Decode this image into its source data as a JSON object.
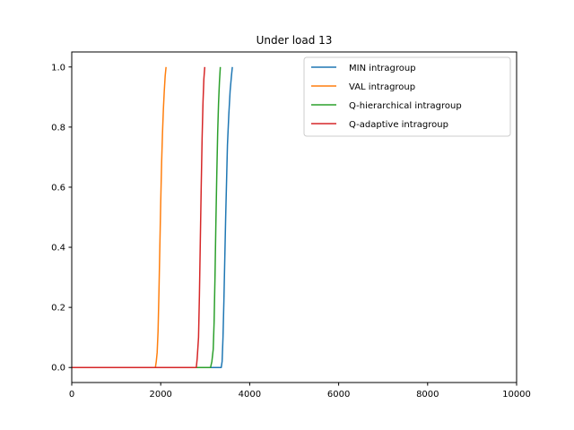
{
  "chart_data": {
    "type": "line",
    "title": "Under load 13",
    "xlabel": "",
    "ylabel": "",
    "xlim": [
      0,
      10000
    ],
    "ylim": [
      -0.05,
      1.05
    ],
    "xticks": [
      0,
      2000,
      4000,
      6000,
      8000,
      10000
    ],
    "yticks": [
      0.0,
      0.2,
      0.4,
      0.6,
      0.8,
      1.0
    ],
    "xtick_labels": [
      "0",
      "2000",
      "4000",
      "6000",
      "8000",
      "10000"
    ],
    "ytick_labels": [
      "0.0",
      "0.2",
      "0.4",
      "0.6",
      "0.8",
      "1.0"
    ],
    "grid": false,
    "legend_position": "top-right",
    "series": [
      {
        "name": "MIN intragroup",
        "color": "#1f77b4",
        "x": [
          0,
          3360,
          3380,
          3400,
          3420,
          3440,
          3460,
          3480,
          3500,
          3530,
          3560,
          3590,
          3610
        ],
        "y": [
          0.0,
          0.0,
          0.02,
          0.1,
          0.22,
          0.36,
          0.5,
          0.62,
          0.74,
          0.84,
          0.92,
          0.97,
          1.0
        ]
      },
      {
        "name": "VAL intragroup",
        "color": "#ff7f0e",
        "x": [
          0,
          1880,
          1900,
          1920,
          1940,
          1960,
          1980,
          2000,
          2020,
          2040,
          2060,
          2080,
          2100,
          2120
        ],
        "y": [
          0.0,
          0.0,
          0.02,
          0.05,
          0.12,
          0.25,
          0.4,
          0.55,
          0.68,
          0.78,
          0.86,
          0.92,
          0.97,
          1.0
        ]
      },
      {
        "name": "Q-hierarchical intragroup",
        "color": "#2ca02c",
        "x": [
          0,
          3120,
          3150,
          3180,
          3200,
          3220,
          3240,
          3260,
          3280,
          3300,
          3320,
          3340
        ],
        "y": [
          0.0,
          0.0,
          0.02,
          0.06,
          0.15,
          0.3,
          0.48,
          0.64,
          0.78,
          0.88,
          0.95,
          1.0
        ]
      },
      {
        "name": "Q-adaptive intragroup",
        "color": "#d62728",
        "x": [
          0,
          2800,
          2820,
          2850,
          2870,
          2890,
          2910,
          2930,
          2950,
          2970,
          2990
        ],
        "y": [
          0.0,
          0.0,
          0.03,
          0.1,
          0.24,
          0.42,
          0.6,
          0.76,
          0.88,
          0.96,
          1.0
        ]
      }
    ]
  }
}
